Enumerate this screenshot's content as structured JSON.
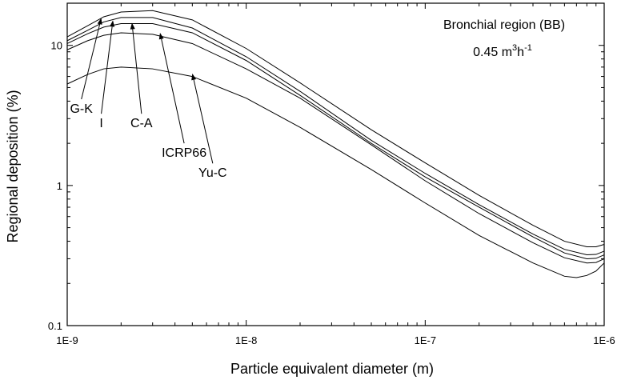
{
  "chart_data": {
    "type": "line",
    "title": "",
    "xlabel": "Particle equivalent diameter (m)",
    "ylabel": "Regional deposition (%)",
    "x_scale": "log",
    "y_scale": "log",
    "xlim": [
      1e-09,
      1e-06
    ],
    "ylim": [
      0.1,
      20
    ],
    "grid": false,
    "x_ticks": [
      {
        "value": 1e-09,
        "label": "1E-9"
      },
      {
        "value": 1e-08,
        "label": "1E-8"
      },
      {
        "value": 1e-07,
        "label": "1E-7"
      },
      {
        "value": 1e-06,
        "label": "1E-6"
      }
    ],
    "y_ticks": [
      {
        "value": 0.1,
        "label": "0.1"
      },
      {
        "value": 1,
        "label": "1"
      },
      {
        "value": 10,
        "label": "10"
      }
    ],
    "annotation_box": {
      "line1": "Bronchial region (BB)",
      "line2_value": "0.45 m",
      "line2_sup1": "3",
      "line2_mid": "h",
      "line2_sup2": "-1"
    },
    "series": [
      {
        "name": "G-K",
        "label_at": [
          1.2e-09,
          3.3
        ],
        "arrow_to": [
          1.55e-09,
          15.7
        ],
        "points": [
          [
            1e-09,
            11.5
          ],
          [
            1.3e-09,
            13.8
          ],
          [
            1.6e-09,
            16.0
          ],
          [
            2e-09,
            17.3
          ],
          [
            3e-09,
            17.7
          ],
          [
            5e-09,
            15.2
          ],
          [
            1e-08,
            9.5
          ],
          [
            2e-08,
            5.4
          ],
          [
            5e-08,
            2.5
          ],
          [
            1e-07,
            1.45
          ],
          [
            2e-07,
            0.85
          ],
          [
            4e-07,
            0.52
          ],
          [
            6e-07,
            0.4
          ],
          [
            8e-07,
            0.365
          ],
          [
            9e-07,
            0.365
          ],
          [
            1e-06,
            0.38
          ]
        ]
      },
      {
        "name": "I",
        "label_at": [
          1.55e-09,
          2.6
        ],
        "arrow_to": [
          1.8e-09,
          15.1
        ],
        "points": [
          [
            1e-09,
            10.8
          ],
          [
            1.3e-09,
            12.8
          ],
          [
            1.6e-09,
            14.7
          ],
          [
            2e-09,
            15.8
          ],
          [
            3e-09,
            15.8
          ],
          [
            5e-09,
            13.3
          ],
          [
            1e-08,
            8.3
          ],
          [
            2e-08,
            4.7
          ],
          [
            5e-08,
            2.1
          ],
          [
            1e-07,
            1.22
          ],
          [
            2e-07,
            0.73
          ],
          [
            4e-07,
            0.45
          ],
          [
            6e-07,
            0.35
          ],
          [
            8e-07,
            0.32
          ],
          [
            9e-07,
            0.322
          ],
          [
            1e-06,
            0.34
          ]
        ]
      },
      {
        "name": "C-A",
        "label_at": [
          2.6e-09,
          2.6
        ],
        "arrow_to": [
          2.3e-09,
          14.5
        ],
        "points": [
          [
            1e-09,
            10.3
          ],
          [
            1.3e-09,
            12.1
          ],
          [
            1.6e-09,
            13.5
          ],
          [
            2e-09,
            14.3
          ],
          [
            3e-09,
            14.3
          ],
          [
            5e-09,
            12.3
          ],
          [
            1e-08,
            7.8
          ],
          [
            2e-08,
            4.4
          ],
          [
            5e-08,
            2.0
          ],
          [
            1e-07,
            1.15
          ],
          [
            2e-07,
            0.7
          ],
          [
            4e-07,
            0.43
          ],
          [
            6e-07,
            0.33
          ],
          [
            8e-07,
            0.3
          ],
          [
            9e-07,
            0.302
          ],
          [
            1e-06,
            0.32
          ]
        ]
      },
      {
        "name": "ICRP66",
        "label_at": [
          4.5e-09,
          1.6
        ],
        "arrow_to": [
          3.3e-09,
          12.3
        ],
        "points": [
          [
            1e-09,
            9.3
          ],
          [
            1.3e-09,
            10.8
          ],
          [
            1.6e-09,
            11.8
          ],
          [
            2e-09,
            12.3
          ],
          [
            3e-09,
            12.0
          ],
          [
            5e-09,
            10.3
          ],
          [
            1e-08,
            6.8
          ],
          [
            2e-08,
            4.2
          ],
          [
            5e-08,
            1.95
          ],
          [
            1e-07,
            1.08
          ],
          [
            2e-07,
            0.63
          ],
          [
            4e-07,
            0.39
          ],
          [
            6e-07,
            0.305
          ],
          [
            8e-07,
            0.28
          ],
          [
            9e-07,
            0.282
          ],
          [
            1e-06,
            0.3
          ]
        ]
      },
      {
        "name": "Yu-C",
        "label_at": [
          6.5e-09,
          1.15
        ],
        "arrow_to": [
          5e-09,
          6.3
        ],
        "points": [
          [
            1e-09,
            5.3
          ],
          [
            1.3e-09,
            6.2
          ],
          [
            1.6e-09,
            6.8
          ],
          [
            2e-09,
            7.0
          ],
          [
            3e-09,
            6.8
          ],
          [
            5e-09,
            6.0
          ],
          [
            1e-08,
            4.2
          ],
          [
            2e-08,
            2.6
          ],
          [
            5e-08,
            1.3
          ],
          [
            1e-07,
            0.75
          ],
          [
            2e-07,
            0.44
          ],
          [
            4e-07,
            0.28
          ],
          [
            6e-07,
            0.225
          ],
          [
            7e-07,
            0.22
          ],
          [
            8e-07,
            0.228
          ],
          [
            9e-07,
            0.245
          ],
          [
            1e-06,
            0.28
          ]
        ]
      }
    ]
  }
}
